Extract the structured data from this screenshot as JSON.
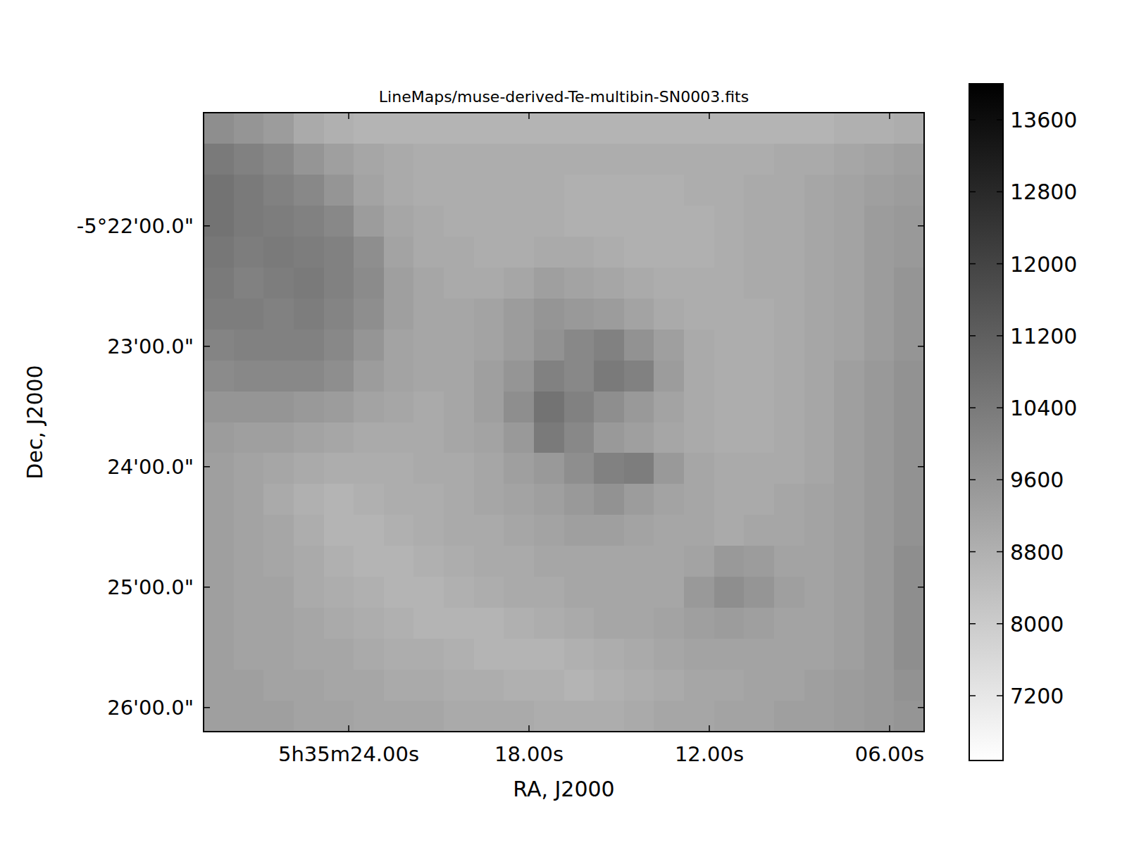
{
  "chart_data": {
    "type": "heatmap",
    "title": "LineMaps/muse-derived-Te-multibin-SN0003.fits",
    "x_label": "RA, J2000",
    "y_label": "Dec, J2000",
    "xlim": [
      28.83,
      4.85
    ],
    "ylim": [
      -326.2,
      -321.06
    ],
    "xticks": [
      {
        "value": 24,
        "label": "5h35m24.00s"
      },
      {
        "value": 18,
        "label": "18.00s"
      },
      {
        "value": 12,
        "label": "12.00s"
      },
      {
        "value": 6,
        "label": "06.00s"
      }
    ],
    "yticks": [
      {
        "value": -322,
        "label": "-5°22'00.0\""
      },
      {
        "value": -323,
        "label": "23'00.0\""
      },
      {
        "value": -324,
        "label": "24'00.0\""
      },
      {
        "value": -325,
        "label": "25'00.0\""
      },
      {
        "value": -326,
        "label": "26'00.0\""
      }
    ],
    "colorbar_lim": [
      6480,
      14000
    ],
    "colorbar_ticks": [
      7200,
      8000,
      8800,
      9600,
      10400,
      11200,
      12000,
      12800,
      13600
    ],
    "cells": [
      [
        9800,
        9600,
        9400,
        9000,
        8800,
        8700,
        8700,
        8700,
        8700,
        8700,
        8700,
        8700,
        8700,
        8700,
        8700,
        8700,
        8700,
        8700,
        8700,
        8700,
        8700,
        8800,
        8800,
        8900
      ],
      [
        10400,
        10200,
        10000,
        9600,
        9300,
        9100,
        9000,
        8900,
        8900,
        8900,
        8900,
        8900,
        8900,
        8900,
        8900,
        8900,
        8900,
        8900,
        8900,
        9000,
        9000,
        9100,
        9200,
        9300
      ],
      [
        10600,
        10400,
        10200,
        10000,
        9600,
        9200,
        9000,
        8900,
        8900,
        8900,
        8900,
        8900,
        8800,
        8800,
        8800,
        8800,
        8900,
        8900,
        9000,
        9000,
        9100,
        9200,
        9300,
        9400
      ],
      [
        10600,
        10400,
        10300,
        10200,
        10000,
        9400,
        9100,
        9000,
        8900,
        8900,
        8900,
        8900,
        8800,
        8800,
        8800,
        8800,
        8800,
        8900,
        9000,
        9000,
        9100,
        9200,
        9400,
        9500
      ],
      [
        10500,
        10300,
        10400,
        10300,
        10200,
        9800,
        9200,
        9000,
        9000,
        8900,
        8900,
        9000,
        9000,
        8900,
        8800,
        8800,
        8800,
        8900,
        9000,
        9000,
        9100,
        9200,
        9400,
        9500
      ],
      [
        10400,
        10200,
        10300,
        10400,
        10200,
        9900,
        9300,
        9100,
        9000,
        9000,
        9100,
        9300,
        9200,
        9100,
        9000,
        8900,
        8900,
        8900,
        9000,
        9000,
        9100,
        9200,
        9400,
        9600
      ],
      [
        10300,
        10300,
        10200,
        10300,
        10100,
        9800,
        9300,
        9100,
        9100,
        9200,
        9400,
        9600,
        9500,
        9400,
        9200,
        9000,
        8900,
        8900,
        8900,
        9000,
        9100,
        9200,
        9400,
        9600
      ],
      [
        10100,
        10200,
        10200,
        10200,
        10000,
        9600,
        9200,
        9100,
        9100,
        9200,
        9400,
        9700,
        10000,
        10200,
        9700,
        9300,
        9000,
        8900,
        8900,
        9000,
        9100,
        9200,
        9400,
        9600
      ],
      [
        9900,
        10000,
        10000,
        10000,
        9800,
        9400,
        9200,
        9100,
        9100,
        9300,
        9600,
        10200,
        10000,
        10400,
        10200,
        9400,
        9000,
        8900,
        8900,
        9000,
        9100,
        9300,
        9500,
        9700
      ],
      [
        9600,
        9600,
        9600,
        9500,
        9400,
        9200,
        9100,
        9000,
        9100,
        9300,
        9800,
        10600,
        10200,
        9800,
        9500,
        9200,
        9000,
        8900,
        8900,
        9000,
        9100,
        9300,
        9500,
        9700
      ],
      [
        9400,
        9300,
        9300,
        9200,
        9100,
        9000,
        9000,
        9000,
        9100,
        9200,
        9500,
        10400,
        10000,
        9500,
        9300,
        9100,
        9000,
        8900,
        8900,
        9000,
        9100,
        9300,
        9500,
        9700
      ],
      [
        9300,
        9200,
        9100,
        9000,
        8900,
        8900,
        8900,
        9000,
        9000,
        9100,
        9300,
        9500,
        9800,
        10200,
        10300,
        9500,
        9100,
        9000,
        9000,
        9000,
        9100,
        9300,
        9500,
        9700
      ],
      [
        9300,
        9200,
        9000,
        8800,
        8700,
        8800,
        8900,
        8900,
        9000,
        9100,
        9200,
        9300,
        9500,
        9700,
        9400,
        9200,
        9100,
        9000,
        9000,
        9100,
        9200,
        9300,
        9500,
        9700
      ],
      [
        9300,
        9200,
        9100,
        8900,
        8700,
        8700,
        8800,
        8900,
        9000,
        9000,
        9100,
        9200,
        9300,
        9300,
        9200,
        9100,
        9100,
        9000,
        9100,
        9100,
        9200,
        9300,
        9500,
        9700
      ],
      [
        9300,
        9200,
        9100,
        9000,
        8800,
        8700,
        8700,
        8800,
        8900,
        9000,
        9000,
        9100,
        9100,
        9100,
        9100,
        9100,
        9200,
        9500,
        9400,
        9200,
        9200,
        9300,
        9500,
        9800
      ],
      [
        9300,
        9200,
        9200,
        9000,
        8900,
        8800,
        8700,
        8700,
        8800,
        8900,
        9000,
        9000,
        9100,
        9100,
        9100,
        9100,
        9500,
        9800,
        9600,
        9300,
        9200,
        9300,
        9500,
        9800
      ],
      [
        9300,
        9200,
        9200,
        9100,
        9000,
        8900,
        8800,
        8700,
        8700,
        8700,
        8800,
        8900,
        9000,
        9100,
        9100,
        9200,
        9300,
        9400,
        9300,
        9200,
        9200,
        9300,
        9500,
        9800
      ],
      [
        9300,
        9200,
        9200,
        9100,
        9100,
        9000,
        8900,
        8900,
        8800,
        8700,
        8700,
        8700,
        8800,
        8900,
        9000,
        9100,
        9200,
        9200,
        9200,
        9200,
        9200,
        9300,
        9500,
        9800
      ],
      [
        9300,
        9300,
        9200,
        9200,
        9100,
        9100,
        9000,
        9000,
        8900,
        8900,
        8800,
        8800,
        8700,
        8800,
        8900,
        9000,
        9100,
        9100,
        9200,
        9200,
        9300,
        9400,
        9500,
        9700
      ],
      [
        9300,
        9300,
        9300,
        9200,
        9200,
        9100,
        9100,
        9100,
        9000,
        9000,
        9000,
        8900,
        8900,
        8900,
        9000,
        9100,
        9100,
        9200,
        9200,
        9300,
        9300,
        9400,
        9500,
        9600
      ]
    ]
  }
}
